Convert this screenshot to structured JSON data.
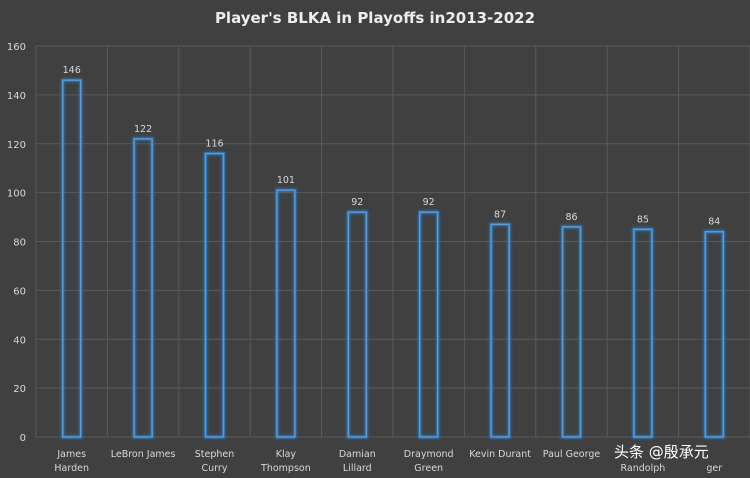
{
  "chart_data": {
    "type": "bar",
    "title": "Player's BLKA in Playoffs in2013-2022",
    "xlabel": "",
    "ylabel": "",
    "ylim": [
      0,
      160
    ],
    "yticks": [
      0,
      20,
      40,
      60,
      80,
      100,
      120,
      140,
      160
    ],
    "grid": true,
    "categories": [
      [
        "James",
        "Harden"
      ],
      [
        "LeBron James"
      ],
      [
        "Stephen",
        "Curry"
      ],
      [
        "Klay",
        "Thompson"
      ],
      [
        "Damian",
        "Lillard"
      ],
      [
        "Draymond",
        "Green"
      ],
      [
        "Kevin Durant"
      ],
      [
        "Paul George"
      ],
      [
        "",
        "Randolph"
      ],
      [
        "",
        "ger"
      ]
    ],
    "values": [
      146,
      122,
      116,
      101,
      92,
      92,
      87,
      86,
      85,
      84
    ],
    "colors": {
      "bar_edge": "#5b9bd5",
      "bar_glow": "#2e75b6",
      "grid": "#5a5a5a",
      "text": "#d8d8d8",
      "background": "#404040"
    }
  },
  "watermark": {
    "text": "头条 @殷承元"
  }
}
